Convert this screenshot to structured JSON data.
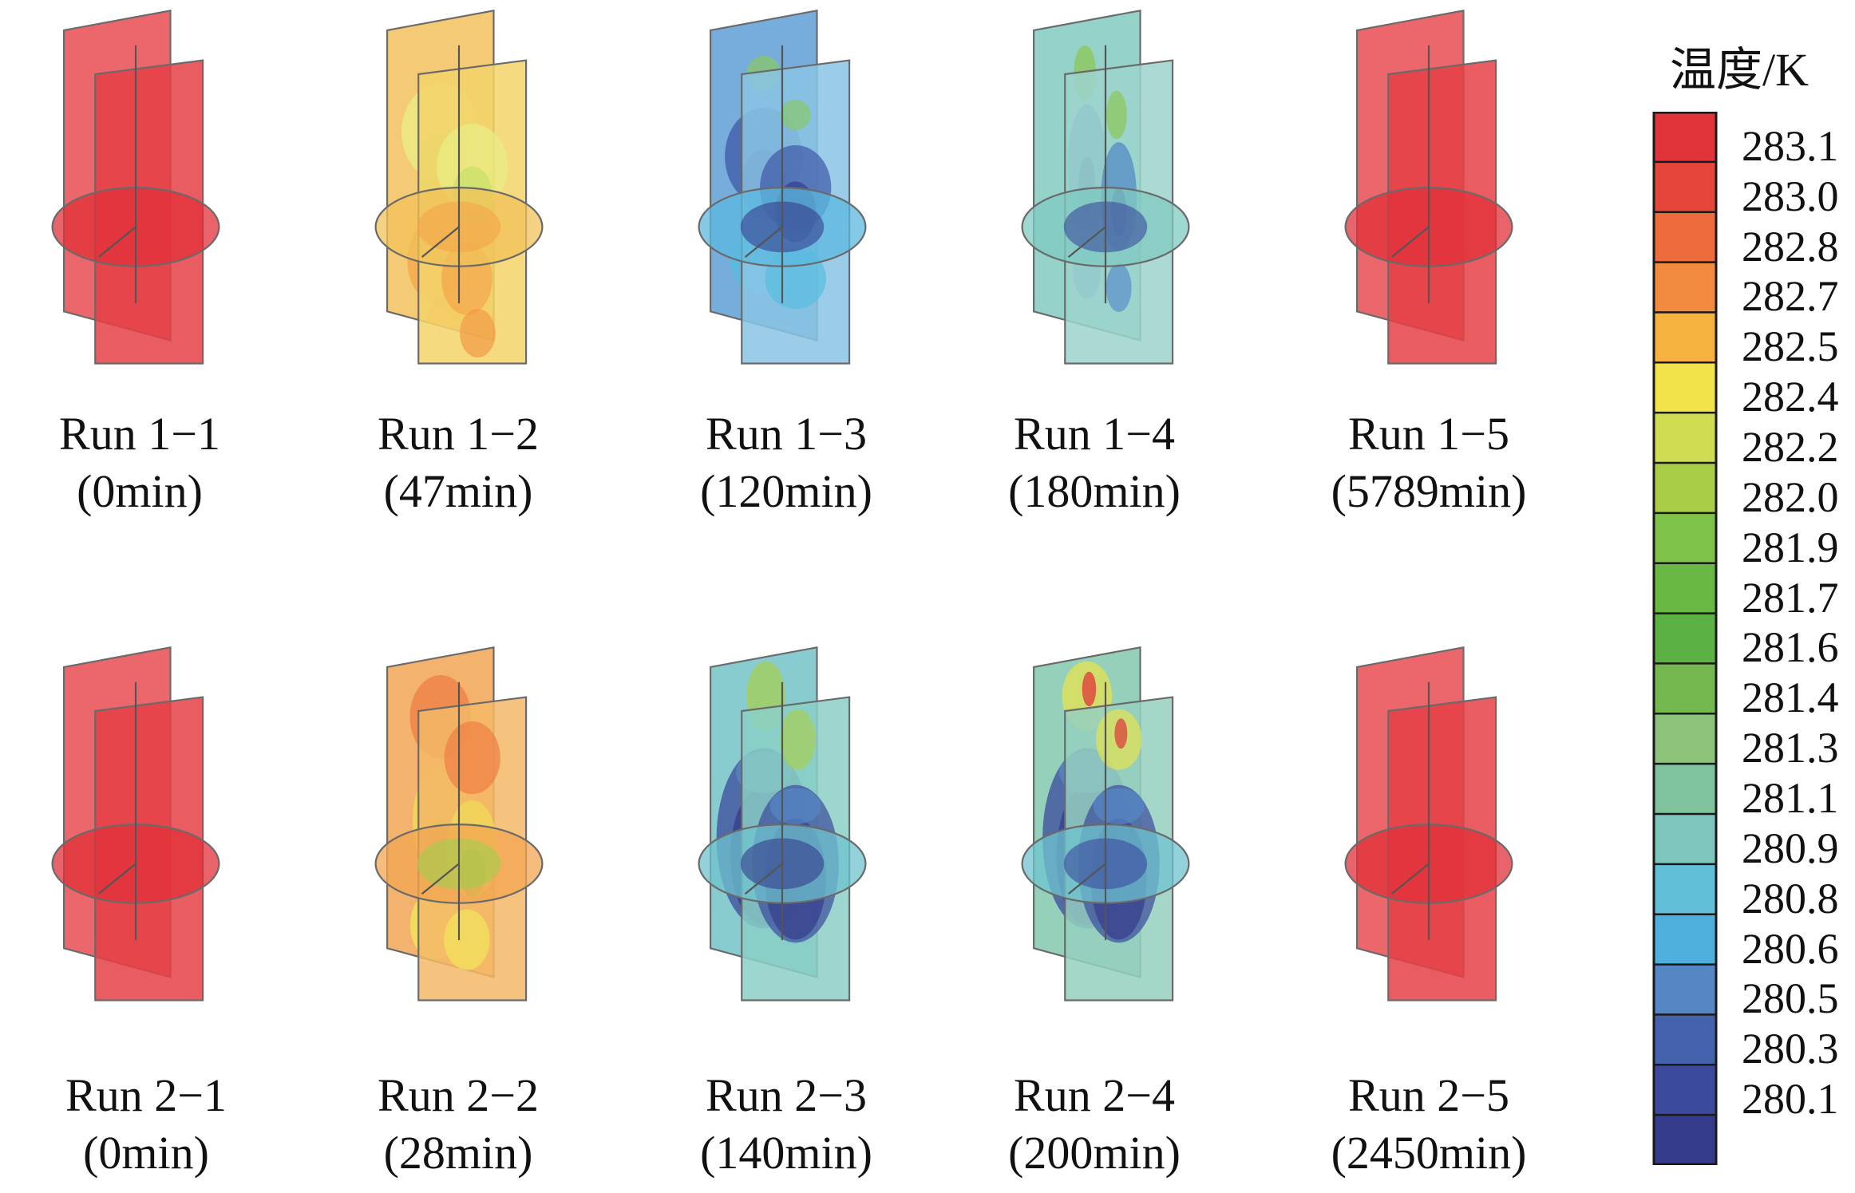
{
  "legend": {
    "title": "温度/K",
    "ticks": [
      "283.1",
      "283.0",
      "282.8",
      "282.7",
      "282.5",
      "282.4",
      "282.2",
      "282.0",
      "281.9",
      "281.7",
      "281.6",
      "281.4",
      "281.3",
      "281.1",
      "280.9",
      "280.8",
      "280.6",
      "280.5",
      "280.3",
      "280.1"
    ],
    "colors": [
      "#e0343a",
      "#e6463a",
      "#ed6b3c",
      "#f28a3f",
      "#f5b23f",
      "#f2e34a",
      "#cfdc52",
      "#a9cd46",
      "#7fc24a",
      "#69b843",
      "#5cb144",
      "#74b84f",
      "#8cc27a",
      "#7ec39b",
      "#7dc5bd",
      "#62bfd8",
      "#4fb0dd",
      "#5687c4",
      "#4562ad",
      "#3b4a9c",
      "#363c8c"
    ]
  },
  "runs": [
    {
      "label": "Run 1−1",
      "time": "(0min)",
      "state": "red"
    },
    {
      "label": "Run 1−2",
      "time": "(47min)",
      "state": "yellow"
    },
    {
      "label": "Run 1−3",
      "time": "(120min)",
      "state": "blue"
    },
    {
      "label": "Run 1−4",
      "time": "(180min)",
      "state": "cyan"
    },
    {
      "label": "Run 1−5",
      "time": "(5789min)",
      "state": "red"
    },
    {
      "label": "Run 2−1",
      "time": "(0min)",
      "state": "red"
    },
    {
      "label": "Run 2−2",
      "time": "(28min)",
      "state": "orange"
    },
    {
      "label": "Run 2−3",
      "time": "(140min)",
      "state": "deepblue"
    },
    {
      "label": "Run 2−4",
      "time": "(200min)",
      "state": "deepblue-hot"
    },
    {
      "label": "Run 2−5",
      "time": "(2450min)",
      "state": "red"
    }
  ]
}
